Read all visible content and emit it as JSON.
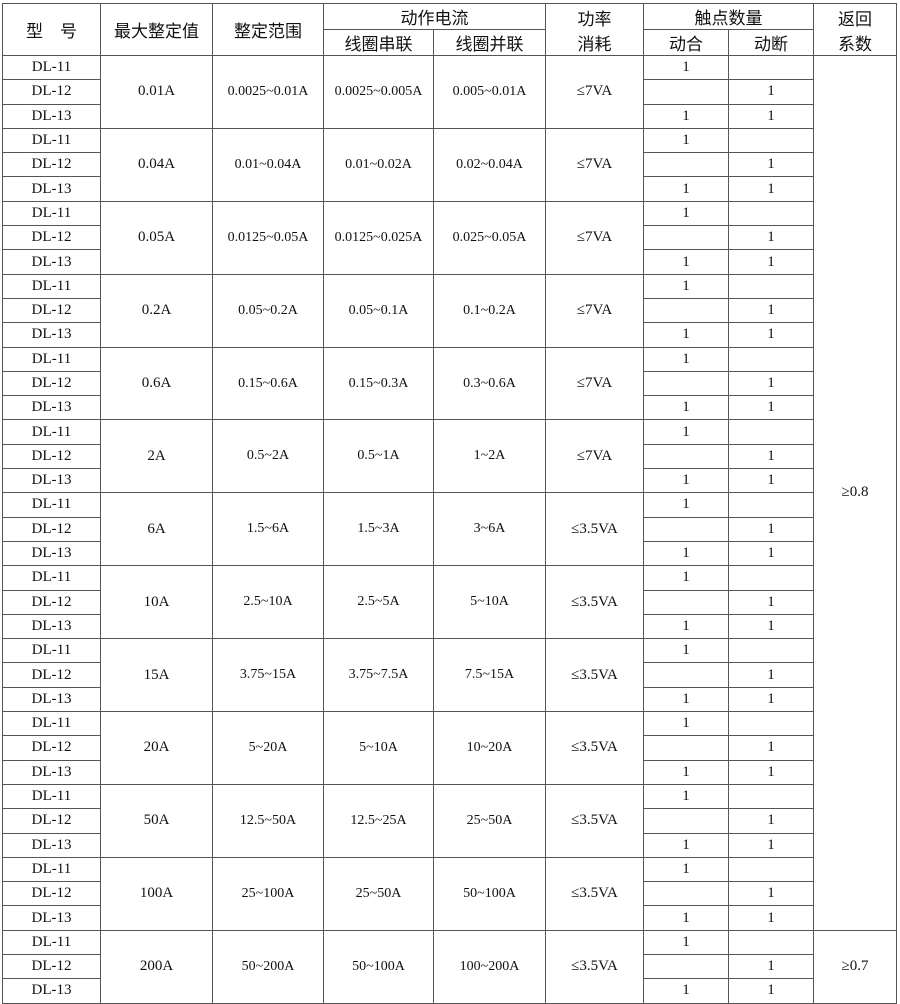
{
  "header": {
    "model": "型　号",
    "max_setting": "最大整定值",
    "setting_range": "整定范围",
    "action_current": "动作电流",
    "coil_series": "线圈串联",
    "coil_parallel": "线圈并联",
    "power": "功率\n消耗",
    "power_l1": "功率",
    "power_l2": "消耗",
    "contacts": "触点数量",
    "make": "动合",
    "break": "动断",
    "return_l1": "返回",
    "return_l2": "系数"
  },
  "models": [
    "DL-11",
    "DL-12",
    "DL-13"
  ],
  "contacts": [
    [
      "1",
      ""
    ],
    [
      "",
      "1"
    ],
    [
      "1",
      "1"
    ]
  ],
  "groups": [
    {
      "max": "0.01A",
      "range": "0.0025~0.01A",
      "series": "0.0025~0.005A",
      "parallel": "0.005~0.01A",
      "power": "≤7VA"
    },
    {
      "max": "0.04A",
      "range": "0.01~0.04A",
      "series": "0.01~0.02A",
      "parallel": "0.02~0.04A",
      "power": "≤7VA"
    },
    {
      "max": "0.05A",
      "range": "0.0125~0.05A",
      "series": "0.0125~0.025A",
      "parallel": "0.025~0.05A",
      "power": "≤7VA"
    },
    {
      "max": "0.2A",
      "range": "0.05~0.2A",
      "series": "0.05~0.1A",
      "parallel": "0.1~0.2A",
      "power": "≤7VA"
    },
    {
      "max": "0.6A",
      "range": "0.15~0.6A",
      "series": "0.15~0.3A",
      "parallel": "0.3~0.6A",
      "power": "≤7VA"
    },
    {
      "max": "2A",
      "range": "0.5~2A",
      "series": "0.5~1A",
      "parallel": "1~2A",
      "power": "≤7VA"
    },
    {
      "max": "6A",
      "range": "1.5~6A",
      "series": "1.5~3A",
      "parallel": "3~6A",
      "power": "≤3.5VA"
    },
    {
      "max": "10A",
      "range": "2.5~10A",
      "series": "2.5~5A",
      "parallel": "5~10A",
      "power": "≤3.5VA"
    },
    {
      "max": "15A",
      "range": "3.75~15A",
      "series": "3.75~7.5A",
      "parallel": "7.5~15A",
      "power": "≤3.5VA"
    },
    {
      "max": "20A",
      "range": "5~20A",
      "series": "5~10A",
      "parallel": "10~20A",
      "power": "≤3.5VA"
    },
    {
      "max": "50A",
      "range": "12.5~50A",
      "series": "12.5~25A",
      "parallel": "25~50A",
      "power": "≤3.5VA"
    },
    {
      "max": "100A",
      "range": "25~100A",
      "series": "25~50A",
      "parallel": "50~100A",
      "power": "≤3.5VA"
    },
    {
      "max": "200A",
      "range": "50~200A",
      "series": "50~100A",
      "parallel": "100~200A",
      "power": "≤3.5VA"
    }
  ],
  "return_coefficients": [
    {
      "value": "≥0.8",
      "groups": 12
    },
    {
      "value": "≥0.7",
      "groups": 1
    }
  ]
}
